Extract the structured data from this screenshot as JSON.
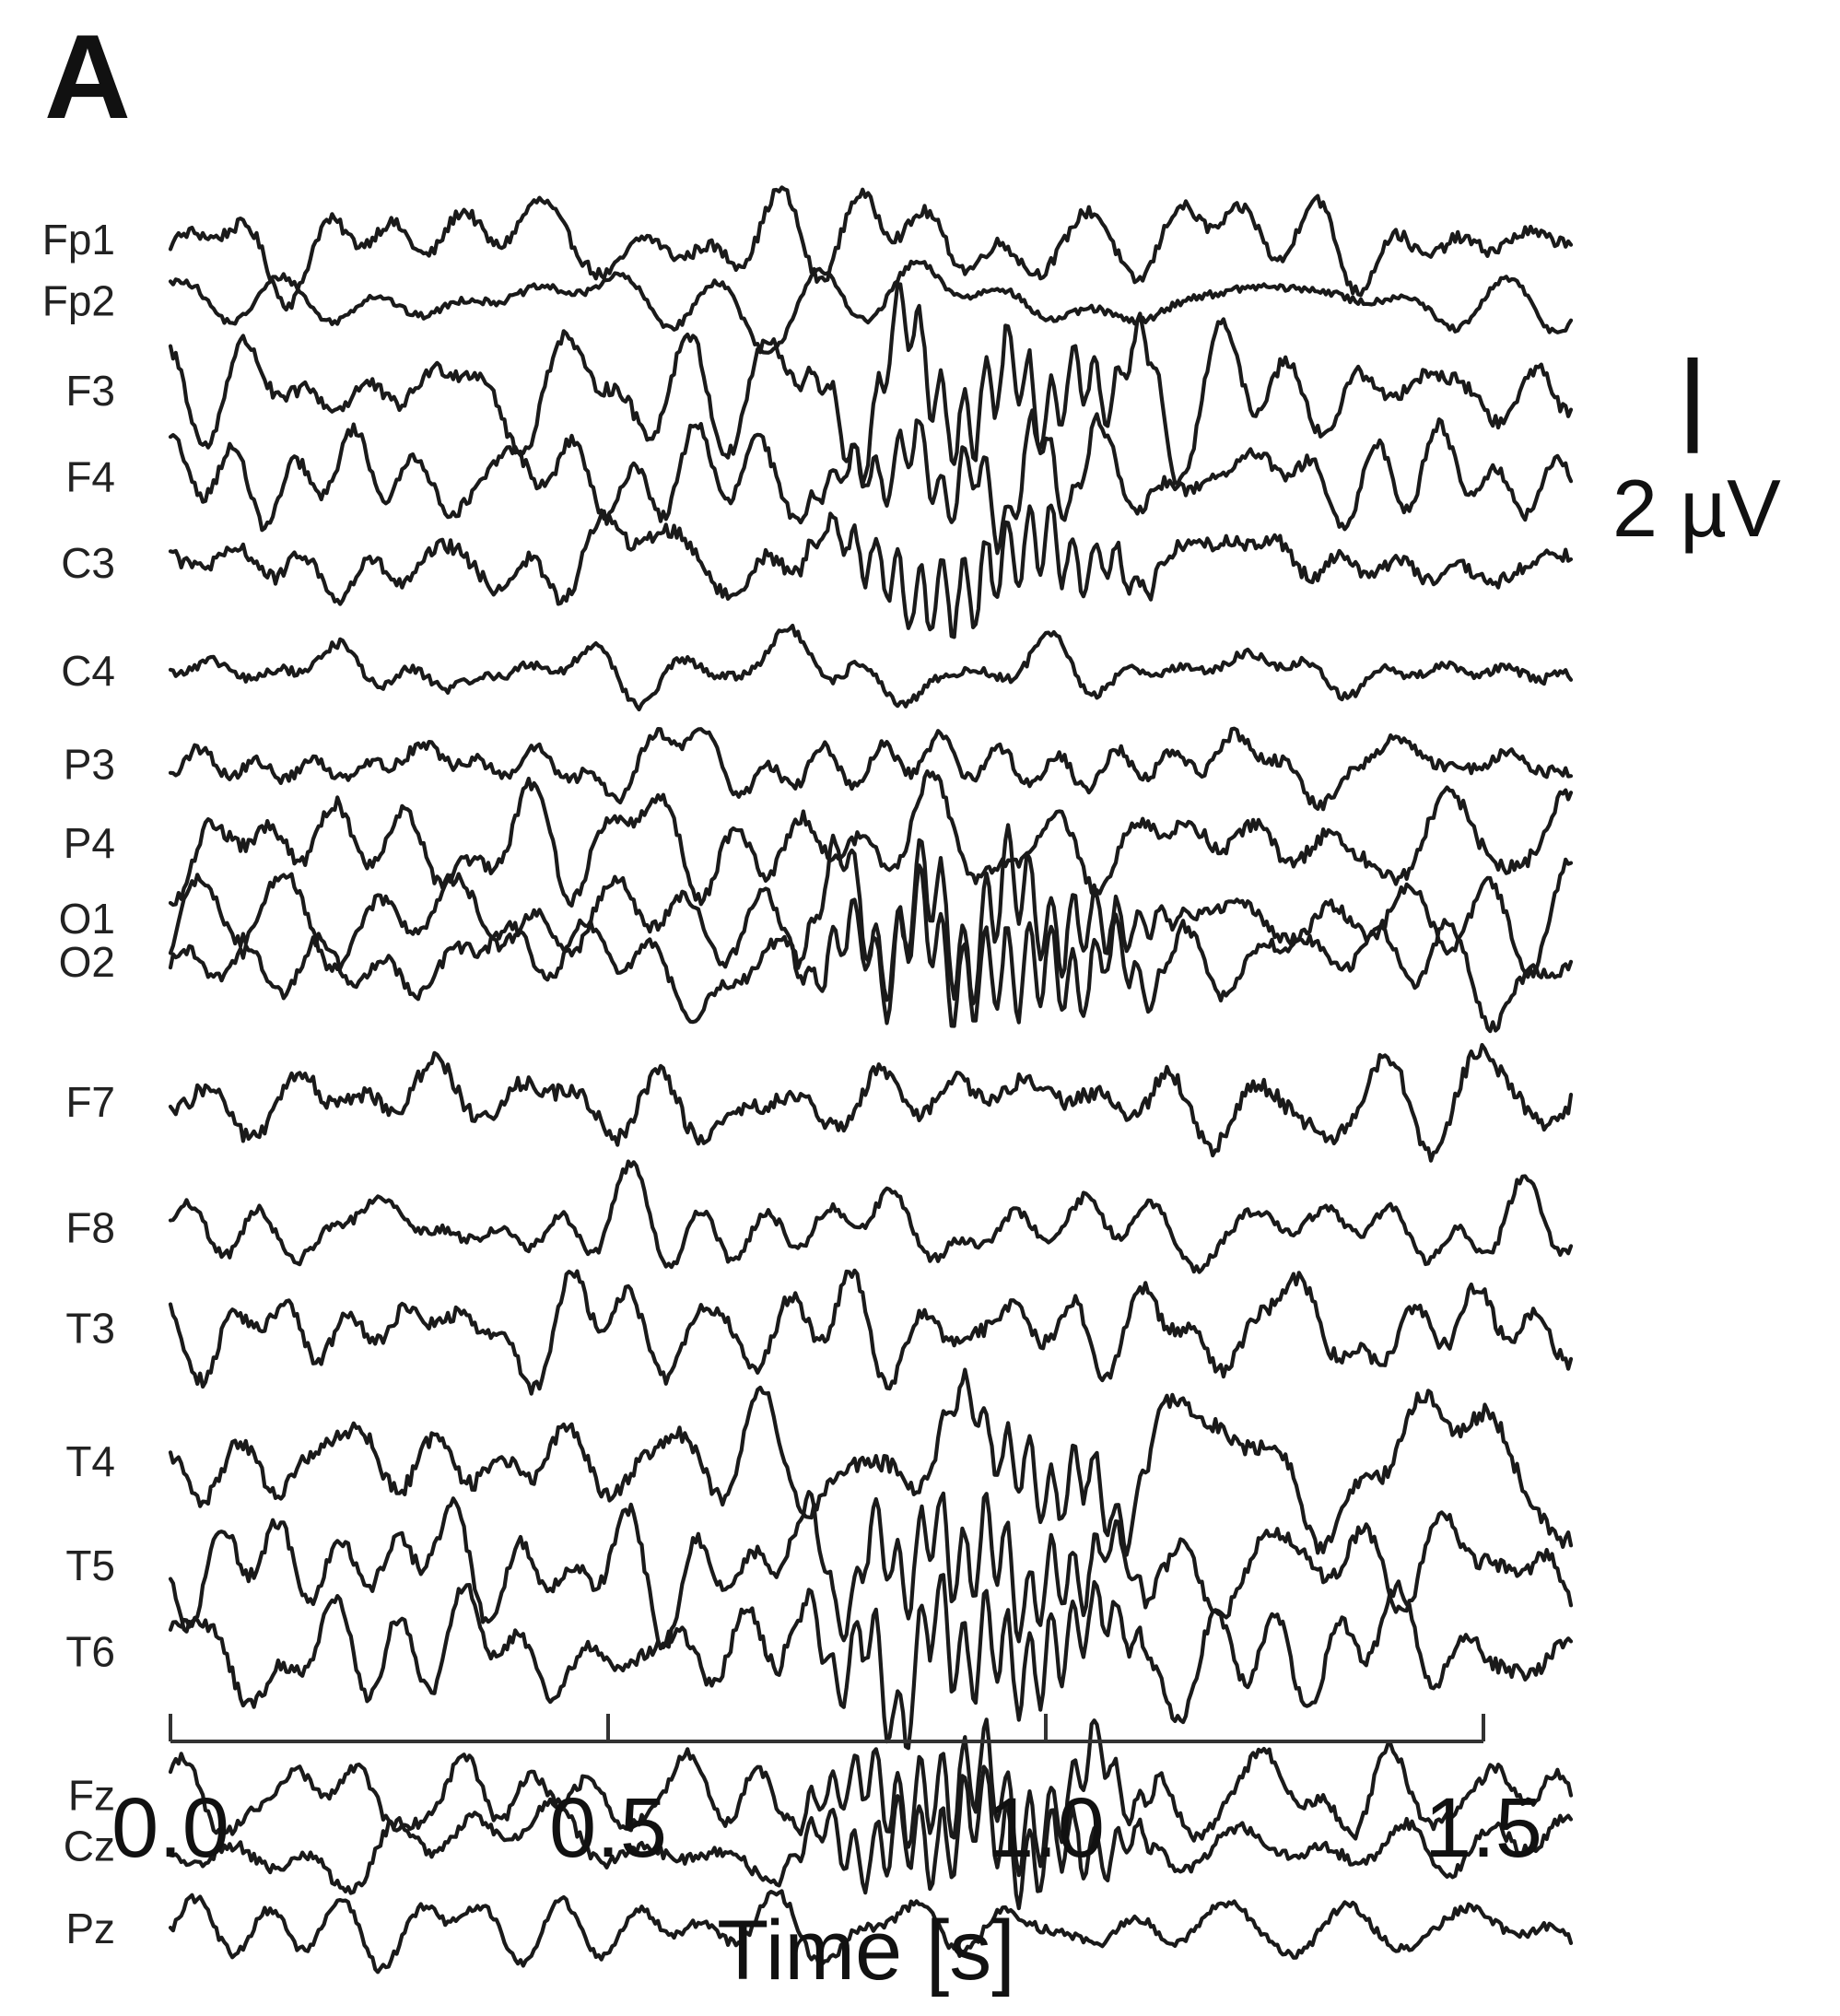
{
  "panel_label": "A",
  "scale_bar": {
    "value": 2,
    "label": "2 µV"
  },
  "chart_data": {
    "type": "line",
    "title": "",
    "xlabel": "Time [s]",
    "ylabel": "",
    "xlim": [
      0.0,
      1.6
    ],
    "xticks": [
      0.0,
      0.5,
      1.0,
      1.5
    ],
    "xtick_labels": [
      "0.0",
      "0.5",
      "1.0",
      "1.5"
    ],
    "y_unit": "µV",
    "grid": false,
    "channels": [
      {
        "name": "Fp1",
        "baseline_uv": 0,
        "noise_uv": 0.6,
        "burst": null
      },
      {
        "name": "Fp2",
        "baseline_uv": -1.7,
        "noise_uv": 0.35,
        "burst": null
      },
      {
        "name": "F3",
        "baseline_uv": -4.2,
        "noise_uv": 0.7,
        "burst": {
          "t_start": 0.7,
          "t_end": 1.18,
          "freq_hz": 40,
          "amp_uv": 1.1
        }
      },
      {
        "name": "F4",
        "baseline_uv": -6.6,
        "noise_uv": 0.6,
        "burst": {
          "t_start": 0.7,
          "t_end": 1.1,
          "freq_hz": 40,
          "amp_uv": 0.8
        }
      },
      {
        "name": "C3",
        "baseline_uv": -9.0,
        "noise_uv": 0.7,
        "burst": {
          "t_start": 0.7,
          "t_end": 1.15,
          "freq_hz": 40,
          "amp_uv": 1.1
        }
      },
      {
        "name": "C4",
        "baseline_uv": -12.0,
        "noise_uv": 0.45,
        "burst": null
      },
      {
        "name": "P3",
        "baseline_uv": -14.6,
        "noise_uv": 0.55,
        "burst": null
      },
      {
        "name": "P4",
        "baseline_uv": -16.8,
        "noise_uv": 0.7,
        "burst": null
      },
      {
        "name": "O1",
        "baseline_uv": -18.9,
        "noise_uv": 0.6,
        "burst": {
          "t_start": 0.68,
          "t_end": 1.17,
          "freq_hz": 40,
          "amp_uv": 1.3
        }
      },
      {
        "name": "O2",
        "baseline_uv": -20.1,
        "noise_uv": 0.6,
        "burst": {
          "t_start": 0.68,
          "t_end": 1.17,
          "freq_hz": 40,
          "amp_uv": 1.3
        }
      },
      {
        "name": "F7",
        "baseline_uv": -24.0,
        "noise_uv": 0.8,
        "burst": null
      },
      {
        "name": "F8",
        "baseline_uv": -27.5,
        "noise_uv": 0.5,
        "burst": null
      },
      {
        "name": "T3",
        "baseline_uv": -30.3,
        "noise_uv": 0.7,
        "burst": null
      },
      {
        "name": "T4",
        "baseline_uv": -34.0,
        "noise_uv": 0.8,
        "burst": {
          "t_start": 0.85,
          "t_end": 1.15,
          "freq_hz": 40,
          "amp_uv": 0.9
        }
      },
      {
        "name": "T5",
        "baseline_uv": -36.9,
        "noise_uv": 0.7,
        "burst": {
          "t_start": 0.7,
          "t_end": 1.15,
          "freq_hz": 40,
          "amp_uv": 1.2
        }
      },
      {
        "name": "T6",
        "baseline_uv": -39.3,
        "noise_uv": 0.7,
        "burst": {
          "t_start": 0.68,
          "t_end": 1.15,
          "freq_hz": 40,
          "amp_uv": 1.3
        }
      },
      {
        "name": "Fz",
        "baseline_uv": -43.3,
        "noise_uv": 0.55,
        "burst": {
          "t_start": 0.68,
          "t_end": 1.15,
          "freq_hz": 40,
          "amp_uv": 1.2
        }
      },
      {
        "name": "Cz",
        "baseline_uv": -44.7,
        "noise_uv": 0.55,
        "burst": {
          "t_start": 0.68,
          "t_end": 1.15,
          "freq_hz": 40,
          "amp_uv": 1.2
        }
      },
      {
        "name": "Pz",
        "baseline_uv": -47.0,
        "noise_uv": 0.45,
        "burst": null
      }
    ]
  }
}
